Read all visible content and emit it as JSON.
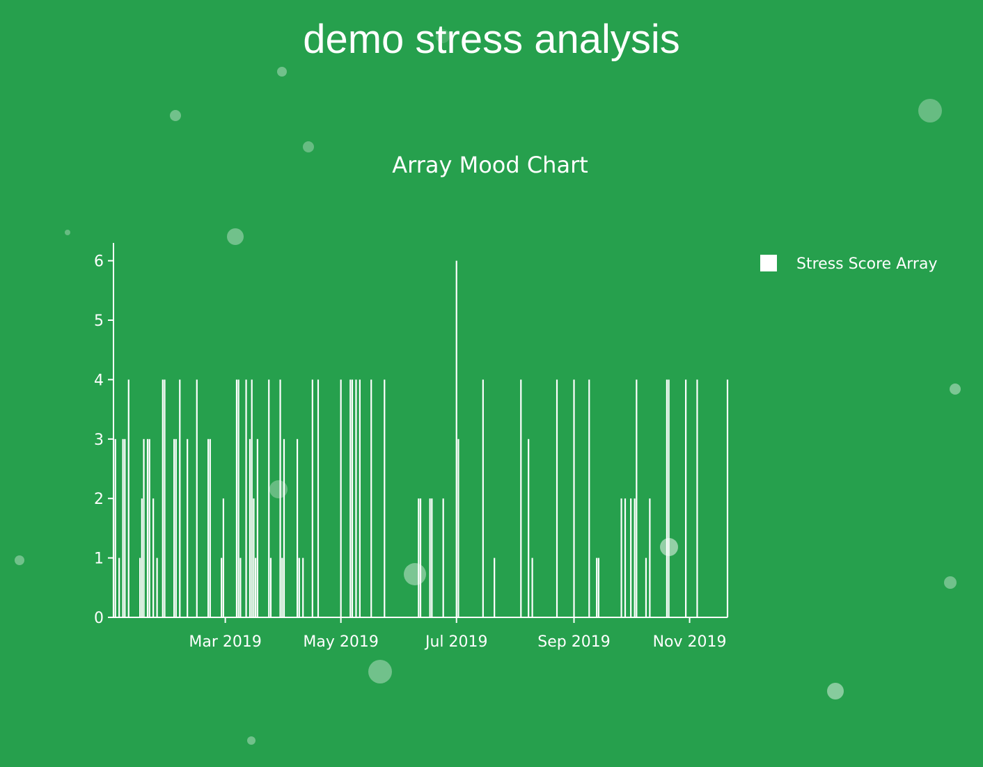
{
  "page": {
    "title": "demo stress analysis",
    "background_color": "#26a04d",
    "bubble_color": "#ffffff"
  },
  "chart_data": {
    "type": "bar",
    "title": "Array Mood Chart",
    "xlabel": "",
    "ylabel": "",
    "color": "#ffffff",
    "grid": false,
    "legend_position": "top-right",
    "series": [
      {
        "name": "Stress Score Array",
        "x": [
          "2019-01-01",
          "2019-01-02",
          "2019-01-04",
          "2019-01-06",
          "2019-01-07",
          "2019-01-09",
          "2019-01-15",
          "2019-01-16",
          "2019-01-17",
          "2019-01-19",
          "2019-01-20",
          "2019-01-22",
          "2019-01-24",
          "2019-01-27",
          "2019-01-28",
          "2019-02-02",
          "2019-02-03",
          "2019-02-05",
          "2019-02-09",
          "2019-02-14",
          "2019-02-20",
          "2019-02-21",
          "2019-02-27",
          "2019-02-28",
          "2019-03-07",
          "2019-03-08",
          "2019-03-09",
          "2019-03-12",
          "2019-03-14",
          "2019-03-15",
          "2019-03-16",
          "2019-03-17",
          "2019-03-18",
          "2019-03-24",
          "2019-03-25",
          "2019-03-30",
          "2019-03-31",
          "2019-04-01",
          "2019-04-08",
          "2019-04-09",
          "2019-04-11",
          "2019-04-16",
          "2019-04-19",
          "2019-05-01",
          "2019-05-06",
          "2019-05-07",
          "2019-05-09",
          "2019-05-11",
          "2019-05-17",
          "2019-05-24",
          "2019-06-11",
          "2019-06-12",
          "2019-06-17",
          "2019-06-18",
          "2019-06-24",
          "2019-07-01",
          "2019-07-02",
          "2019-07-15",
          "2019-07-21",
          "2019-08-04",
          "2019-08-08",
          "2019-08-10",
          "2019-08-23",
          "2019-09-01",
          "2019-09-09",
          "2019-09-13",
          "2019-09-14",
          "2019-09-26",
          "2019-09-28",
          "2019-10-01",
          "2019-10-03",
          "2019-10-04",
          "2019-10-09",
          "2019-10-11",
          "2019-10-20",
          "2019-10-21",
          "2019-10-30",
          "2019-11-05",
          "2019-11-21"
        ],
        "values": [
          2,
          3,
          1,
          3,
          3,
          4,
          1,
          2,
          3,
          3,
          3,
          2,
          1,
          4,
          4,
          3,
          3,
          4,
          3,
          4,
          3,
          3,
          1,
          2,
          4,
          4,
          1,
          4,
          3,
          4,
          2,
          1,
          3,
          4,
          1,
          4,
          1,
          3,
          3,
          1,
          1,
          4,
          4,
          4,
          4,
          4,
          4,
          4,
          4,
          4,
          2,
          2,
          2,
          2,
          2,
          6,
          3,
          4,
          1,
          4,
          3,
          1,
          4,
          4,
          4,
          1,
          1,
          2,
          2,
          2,
          2,
          4,
          1,
          2,
          4,
          4,
          4,
          4,
          4
        ]
      }
    ],
    "ylim": [
      0,
      6.3
    ],
    "yticks": [
      0,
      1,
      2,
      3,
      4,
      5,
      6
    ],
    "xlim": [
      "2019-01-01",
      "2019-11-21"
    ],
    "xticks": [
      {
        "value": "2019-03-01",
        "label": "Mar 2019"
      },
      {
        "value": "2019-05-01",
        "label": "May 2019"
      },
      {
        "value": "2019-07-01",
        "label": "Jul 2019"
      },
      {
        "value": "2019-09-01",
        "label": "Sep 2019"
      },
      {
        "value": "2019-11-01",
        "label": "Nov 2019"
      }
    ]
  }
}
